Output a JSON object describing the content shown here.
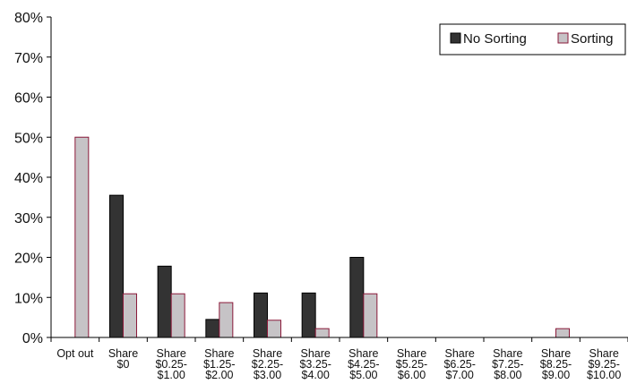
{
  "chart_data": {
    "type": "bar",
    "categories": [
      [
        "Opt out"
      ],
      [
        "Share",
        "$0"
      ],
      [
        "Share",
        "$0.25-",
        "$1.00"
      ],
      [
        "Share",
        "$1.25-",
        "$2.00"
      ],
      [
        "Share",
        "$2.25-",
        "$3.00"
      ],
      [
        "Share",
        "$3.25-",
        "$4.00"
      ],
      [
        "Share",
        "$4.25-",
        "$5.00"
      ],
      [
        "Share",
        "$5.25-",
        "$6.00"
      ],
      [
        "Share",
        "$6.25-",
        "$7.00"
      ],
      [
        "Share",
        "$7.25-",
        "$8.00"
      ],
      [
        "Share",
        "$8.25-",
        "$9.00"
      ],
      [
        "Share",
        "$9.25-",
        "$10.00"
      ]
    ],
    "series": [
      {
        "name": "No Sorting",
        "color": "#333333",
        "values": [
          0,
          35.5,
          17.8,
          4.5,
          11.1,
          11.1,
          20.0,
          0,
          0,
          0,
          0,
          0
        ]
      },
      {
        "name": "Sorting",
        "color": "#c6c3c6",
        "values": [
          50.0,
          10.9,
          10.9,
          8.7,
          4.3,
          2.2,
          10.9,
          0,
          0,
          0,
          2.2,
          0
        ]
      }
    ],
    "ylim": [
      0,
      80
    ],
    "yticks": [
      "0%",
      "10%",
      "20%",
      "30%",
      "40%",
      "50%",
      "60%",
      "70%",
      "80%"
    ],
    "legend": "top-right",
    "grid": false,
    "bar_outline_color": "#8b1a3a"
  }
}
